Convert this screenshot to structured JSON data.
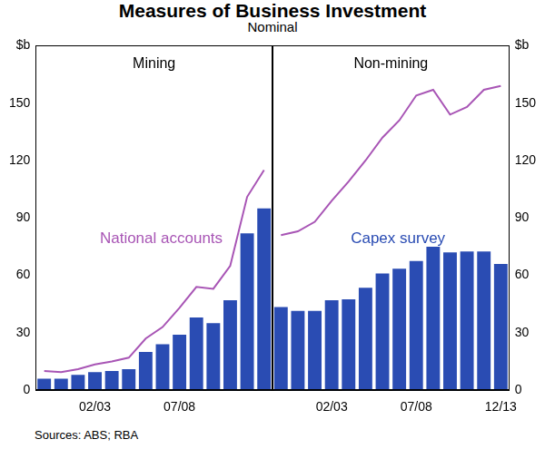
{
  "title": "Measures of Business Investment",
  "subtitle": "Nominal",
  "source": "Sources: ABS; RBA",
  "chart_data": [
    {
      "type": "bar",
      "title": "Mining",
      "categories": [
        null,
        null,
        null,
        "02/03",
        null,
        null,
        null,
        null,
        "07/08",
        null,
        null,
        null,
        null,
        null
      ],
      "series": [
        {
          "name": "National accounts",
          "type": "line",
          "color": "#a855b5",
          "values": [
            10,
            9.5,
            11,
            13.5,
            15,
            17,
            27,
            33,
            43,
            54,
            53,
            65,
            101,
            115
          ]
        },
        {
          "name": "Capex survey",
          "type": "bar",
          "color": "#2a4cb3",
          "values": [
            6,
            6,
            8,
            9.5,
            10,
            11,
            20,
            24,
            29,
            38,
            35,
            47,
            82,
            95
          ]
        }
      ],
      "annotations": [
        "National accounts"
      ],
      "ylim": [
        0,
        180
      ],
      "yticks": [
        0,
        30,
        60,
        90,
        120,
        150,
        {
          "value": 180,
          "label": "$b"
        }
      ],
      "grid": false
    },
    {
      "type": "bar",
      "title": "Non-mining",
      "categories": [
        null,
        null,
        null,
        "02/03",
        null,
        null,
        null,
        null,
        "07/08",
        null,
        null,
        null,
        null,
        "12/13"
      ],
      "series": [
        {
          "name": "National accounts",
          "type": "line",
          "color": "#a855b5",
          "values": [
            81,
            83,
            88,
            99,
            109,
            120,
            132,
            141,
            154,
            157,
            144,
            148,
            157,
            159
          ]
        },
        {
          "name": "Capex survey",
          "type": "bar",
          "color": "#2a4cb3",
          "values": [
            43.5,
            41.5,
            41.5,
            47,
            47.5,
            53.5,
            61,
            63.5,
            67.5,
            75,
            72,
            72.5,
            72.5,
            66
          ]
        }
      ],
      "annotations": [
        "Capex survey"
      ],
      "ylim": [
        0,
        180
      ],
      "yticks": [
        0,
        30,
        60,
        90,
        120,
        150,
        {
          "value": 180,
          "label": "$b"
        }
      ],
      "grid": false
    }
  ]
}
